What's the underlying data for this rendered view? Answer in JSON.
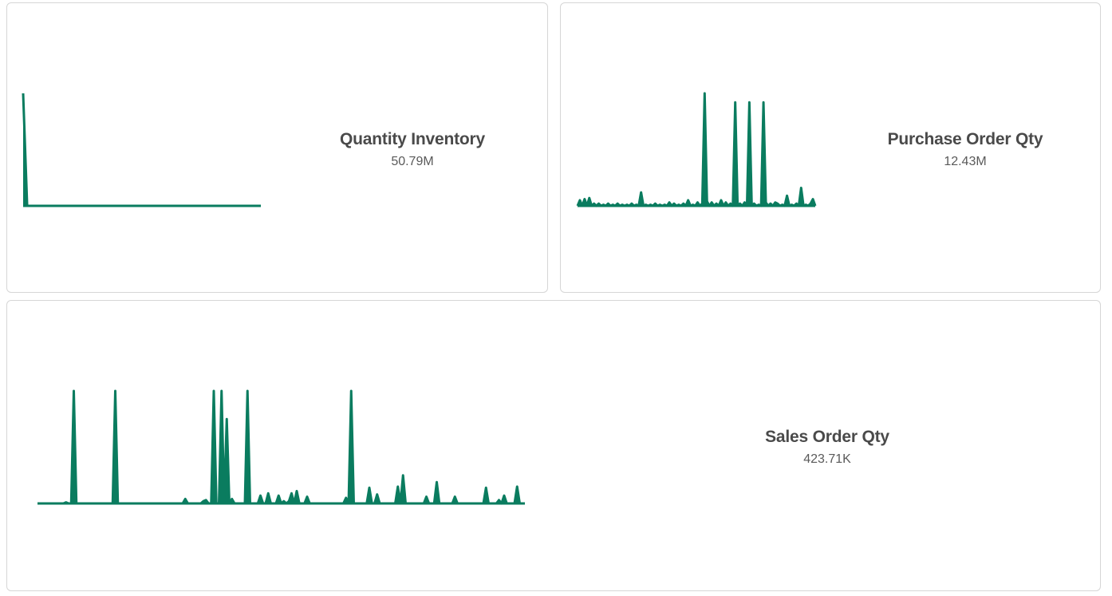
{
  "accent_color": "#0a7c5f",
  "cards": [
    {
      "title": "Quantity Inventory",
      "value": "50.79M"
    },
    {
      "title": "Purchase Order Qty",
      "value": "12.43M"
    },
    {
      "title": "Sales Order Qty",
      "value": "423.71K"
    }
  ],
  "chart_data": [
    {
      "type": "area",
      "title": "Quantity Inventory",
      "kpi": "50.79M",
      "values": [
        100,
        0,
        0,
        0,
        0,
        0,
        0,
        0,
        0,
        0,
        0,
        0,
        0,
        0,
        0,
        0,
        0,
        0,
        0,
        0,
        0,
        0,
        0,
        0,
        0,
        0,
        0,
        0,
        0,
        0,
        0,
        0,
        0,
        0,
        0,
        0,
        0,
        0,
        0,
        0,
        0,
        0,
        0,
        0,
        0,
        0,
        0,
        0,
        0,
        0,
        0,
        0,
        0,
        0,
        0,
        0,
        0,
        0,
        0,
        0
      ],
      "ylim": [
        0,
        100
      ]
    },
    {
      "type": "area",
      "title": "Purchase Order Qty",
      "kpi": "12.43M",
      "values": [
        0,
        5,
        0,
        6,
        0,
        7,
        0,
        2,
        0,
        2,
        0,
        1,
        0,
        2,
        0,
        1,
        0,
        2,
        0,
        1,
        0,
        1,
        0,
        2,
        0,
        1,
        0,
        12,
        0,
        1,
        0,
        1,
        0,
        2,
        0,
        1,
        0,
        1,
        0,
        3,
        0,
        2,
        0,
        1,
        0,
        2,
        0,
        5,
        0,
        1,
        0,
        3,
        0,
        2,
        100,
        4,
        0,
        3,
        0,
        2,
        0,
        5,
        0,
        3,
        0,
        2,
        0,
        92,
        0,
        2,
        0,
        3,
        0,
        92,
        0,
        2,
        0,
        1,
        0,
        92,
        3,
        0,
        2,
        0,
        3,
        2,
        0,
        1,
        0,
        9,
        0,
        1,
        0,
        2,
        0,
        16,
        0,
        1,
        0,
        2,
        6,
        0
      ],
      "ylim": [
        0,
        100
      ]
    },
    {
      "type": "area",
      "title": "Sales Order Qty",
      "kpi": "423.71K",
      "values": [
        0,
        0,
        0,
        0,
        0,
        0,
        0,
        0,
        0,
        0,
        0,
        1,
        0,
        0,
        100,
        0,
        0,
        0,
        0,
        0,
        0,
        0,
        0,
        0,
        0,
        0,
        0,
        0,
        0,
        0,
        100,
        0,
        0,
        0,
        0,
        0,
        0,
        0,
        0,
        0,
        0,
        0,
        0,
        0,
        0,
        0,
        0,
        0,
        0,
        0,
        0,
        0,
        0,
        0,
        0,
        0,
        0,
        4,
        0,
        0,
        0,
        0,
        0,
        0,
        2,
        3,
        0,
        0,
        100,
        0,
        0,
        100,
        0,
        75,
        0,
        4,
        0,
        0,
        0,
        0,
        0,
        100,
        0,
        0,
        0,
        0,
        7,
        0,
        0,
        9,
        0,
        0,
        0,
        7,
        0,
        2,
        0,
        2,
        9,
        0,
        11,
        0,
        0,
        0,
        6,
        0,
        0,
        0,
        0,
        0,
        0,
        0,
        0,
        0,
        0,
        0,
        0,
        0,
        0,
        5,
        0,
        100,
        0,
        0,
        0,
        0,
        0,
        0,
        14,
        0,
        0,
        8,
        0,
        0,
        0,
        0,
        0,
        0,
        0,
        15,
        0,
        25,
        0,
        0,
        0,
        0,
        0,
        0,
        0,
        0,
        6,
        0,
        0,
        0,
        19,
        0,
        0,
        0,
        0,
        0,
        0,
        6,
        0,
        0,
        0,
        0,
        0,
        0,
        0,
        0,
        0,
        0,
        0,
        14,
        0,
        0,
        0,
        0,
        3,
        0,
        7,
        0,
        0,
        0,
        0,
        15,
        0,
        0,
        0
      ],
      "ylim": [
        0,
        100
      ]
    }
  ]
}
